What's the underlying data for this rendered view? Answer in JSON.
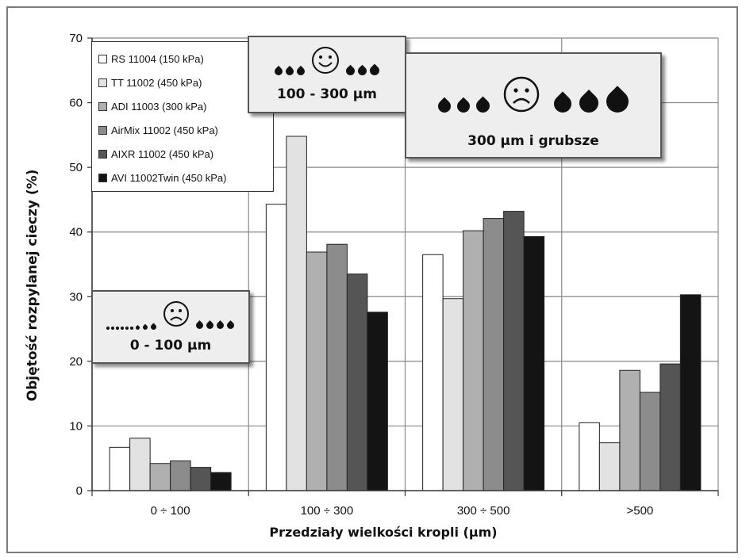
{
  "chart_data": {
    "type": "bar",
    "ylabel": "Objętość rozpylanej cieczy (%)",
    "xlabel": "Przedziały  wielkości kropli (µm)",
    "ylim": [
      0,
      70
    ],
    "yticks": [
      0,
      10,
      20,
      30,
      40,
      50,
      60,
      70
    ],
    "categories": [
      "0 ÷ 100",
      "100 ÷ 300",
      "300 ÷ 500",
      ">500"
    ],
    "grid": "vertical and horizontal",
    "legend_position": "top-left",
    "series": [
      {
        "name": "RS 11004 (150 kPa)",
        "color": "#ffffff",
        "values": [
          6.7,
          44.3,
          36.5,
          10.5
        ]
      },
      {
        "name": "TT 11002 (450 kPa)",
        "color": "#e2e2e2",
        "values": [
          8.1,
          54.8,
          29.7,
          7.4
        ]
      },
      {
        "name": "ADI 11003 (300 kPa)",
        "color": "#b0b0b0",
        "values": [
          4.2,
          36.9,
          40.2,
          18.6
        ]
      },
      {
        "name": "AirMix 11002 (450 kPa)",
        "color": "#8c8c8c",
        "values": [
          4.6,
          38.1,
          42.1,
          15.2
        ]
      },
      {
        "name": "AIXR 11002 (450 kPa)",
        "color": "#555555",
        "values": [
          3.6,
          33.5,
          43.2,
          19.6
        ]
      },
      {
        "name": "AVI 11002Twin (450 kPa)",
        "color": "#141414",
        "values": [
          2.8,
          27.6,
          39.3,
          30.3
        ]
      }
    ]
  },
  "annotations": {
    "fine": {
      "label": "0 - 100 µm",
      "icon": "sad-face"
    },
    "medium": {
      "label": "100 - 300 µm",
      "icon": "happy-face"
    },
    "coarse": {
      "label": "300 µm i grubsze",
      "icon": "sad-face"
    }
  }
}
